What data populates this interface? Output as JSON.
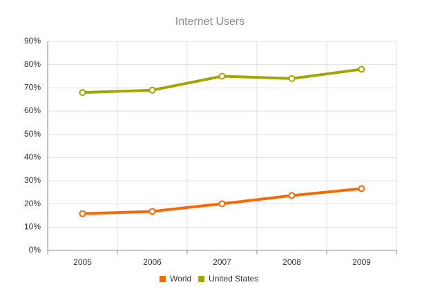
{
  "chart_data": {
    "type": "line",
    "title": "Internet Users",
    "categories": [
      "2005",
      "2006",
      "2007",
      "2008",
      "2009"
    ],
    "series": [
      {
        "name": "World",
        "color": "#ff6800",
        "values": [
          15.8,
          16.8,
          20.1,
          23.6,
          26.6
        ]
      },
      {
        "name": "United States",
        "color": "#a0a700",
        "values": [
          68,
          69,
          75,
          74,
          78
        ]
      }
    ],
    "ylim": [
      0,
      90
    ],
    "yticks": [
      {
        "value": 0,
        "label": "0%"
      },
      {
        "value": 10,
        "label": "10%"
      },
      {
        "value": 20,
        "label": "20%"
      },
      {
        "value": 30,
        "label": "30%"
      },
      {
        "value": 40,
        "label": "40%"
      },
      {
        "value": 50,
        "label": "50%"
      },
      {
        "value": 60,
        "label": "60%"
      },
      {
        "value": 70,
        "label": "70%"
      },
      {
        "value": 80,
        "label": "80%"
      },
      {
        "value": 90,
        "label": "90%"
      }
    ],
    "grid": true,
    "legend": "bottom"
  }
}
